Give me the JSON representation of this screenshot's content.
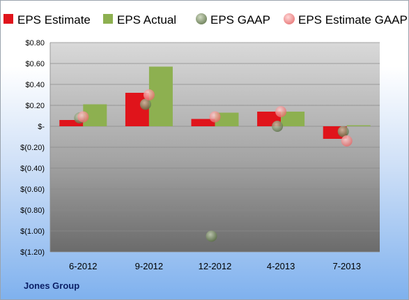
{
  "brand": "Jones Group",
  "chart_data": {
    "type": "bar",
    "categories": [
      "6-2012",
      "9-2012",
      "12-2012",
      "4-2013",
      "7-2013"
    ],
    "ylim": [
      -1.2,
      0.8
    ],
    "yticks": [
      0.8,
      0.6,
      0.4,
      0.2,
      0,
      -0.2,
      -0.4,
      -0.6,
      -0.8,
      -1.0,
      -1.2
    ],
    "ytick_labels": [
      "$0.80",
      "$0.60",
      "$0.40",
      "$0.20",
      "$-",
      "$(0.20)",
      "$(0.40)",
      "$(0.60)",
      "$(0.80)",
      "$(1.00)",
      "$(1.20)"
    ],
    "grid": true,
    "legend_position": "top",
    "series": [
      {
        "name": "EPS Estimate",
        "kind": "bar",
        "color": "#e0141b",
        "values": [
          0.06,
          0.32,
          0.07,
          0.14,
          -0.12
        ]
      },
      {
        "name": "EPS Actual",
        "kind": "bar",
        "color": "#8db050",
        "values": [
          0.21,
          0.57,
          0.13,
          0.14,
          0.01
        ]
      },
      {
        "name": "EPS GAAP",
        "kind": "scatter",
        "color": "#7a8f6a",
        "values": [
          0.08,
          0.21,
          -1.05,
          0.0,
          -0.05
        ]
      },
      {
        "name": "EPS Estimate GAAP",
        "kind": "scatter",
        "color": "#f08a8a",
        "values": [
          0.09,
          0.3,
          0.09,
          0.14,
          -0.14
        ]
      }
    ]
  }
}
